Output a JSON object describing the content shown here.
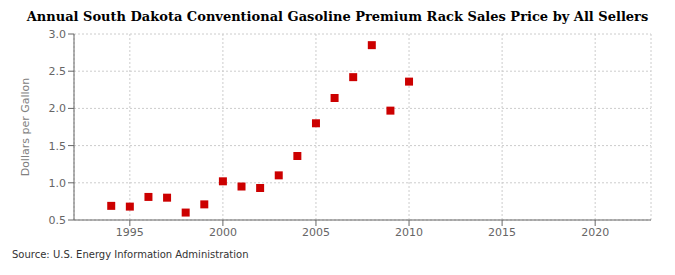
{
  "chart_data": {
    "type": "scatter",
    "title": "Annual South Dakota Conventional Gasoline Premium Rack Sales Price by All Sellers",
    "y_label": "Dollars per Gallon",
    "annotations": [
      "Source: U.S. Energy Information Administration"
    ],
    "x": [
      1994,
      1995,
      1996,
      1997,
      1998,
      1999,
      2000,
      2001,
      2002,
      2003,
      2004,
      2005,
      2006,
      2007,
      2008,
      2009,
      2010
    ],
    "values": [
      0.69,
      0.68,
      0.81,
      0.8,
      0.6,
      0.71,
      1.02,
      0.95,
      0.93,
      1.1,
      1.36,
      1.8,
      2.14,
      2.42,
      2.85,
      1.97,
      2.36
    ],
    "color": "#cc0000",
    "marker": "square",
    "xlim": [
      1992,
      2023
    ],
    "xticks": [
      1995,
      2000,
      2005,
      2010,
      2015,
      2020
    ],
    "ylim": [
      0.5,
      3.0
    ],
    "yticks": [
      0.5,
      {
        "value": 1.0,
        "label": "1.0"
      },
      1.5,
      {
        "value": 2.0,
        "label": "2.0"
      },
      2.5,
      {
        "value": 3.0,
        "label": "3.0"
      }
    ],
    "grid": true
  }
}
